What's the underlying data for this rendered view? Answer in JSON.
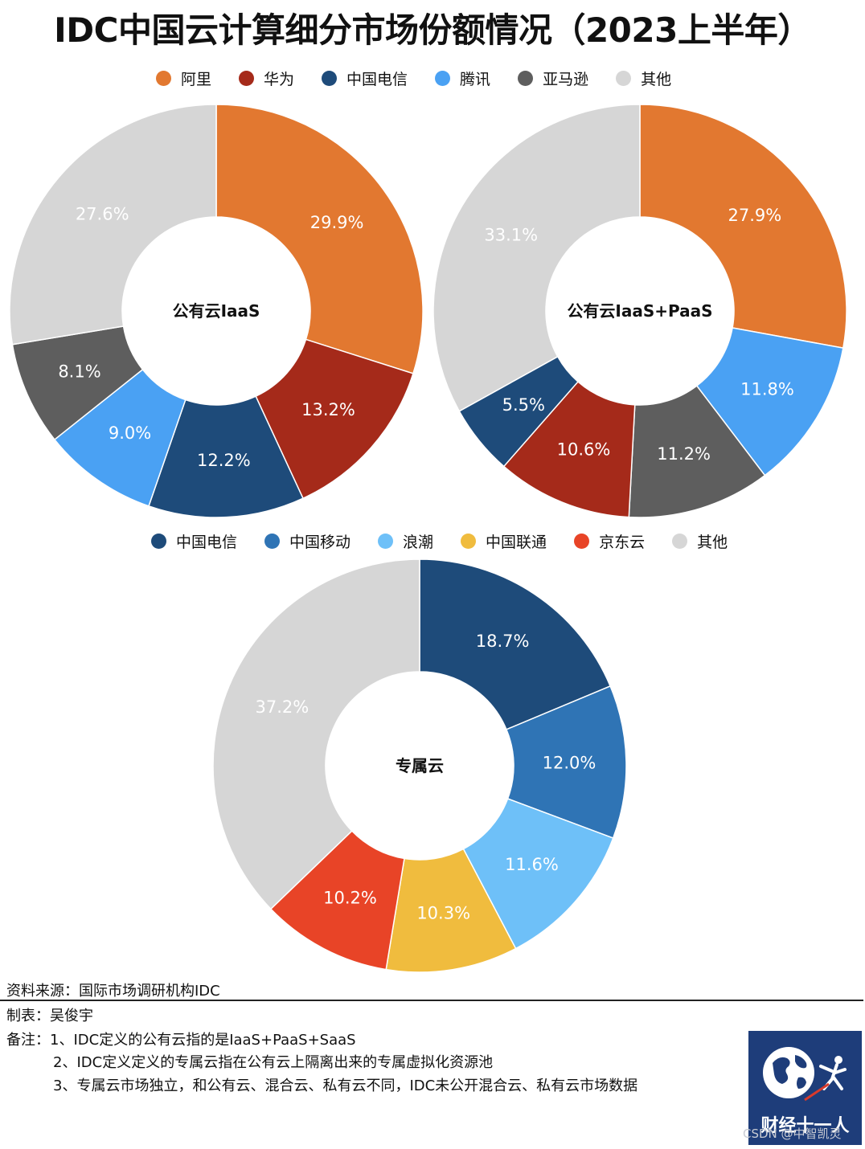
{
  "title": "IDC中国云计算细分市场份额情况（2023上半年）",
  "legend_top": [
    {
      "name": "阿里",
      "color": "#E27830"
    },
    {
      "name": "华为",
      "color": "#A52A1A"
    },
    {
      "name": "中国电信",
      "color": "#1E4B7A"
    },
    {
      "name": "腾讯",
      "color": "#4AA1F3"
    },
    {
      "name": "亚马逊",
      "color": "#5E5E5E"
    },
    {
      "name": "其他",
      "color": "#D6D6D6"
    }
  ],
  "legend_bottom": [
    {
      "name": "中国电信",
      "color": "#1E4B7A"
    },
    {
      "name": "中国移动",
      "color": "#2F74B5"
    },
    {
      "name": "浪潮",
      "color": "#6EC0F8"
    },
    {
      "name": "中国联通",
      "color": "#F0BC3E"
    },
    {
      "name": "京东云",
      "color": "#E84427"
    },
    {
      "name": "其他",
      "color": "#D6D6D6"
    }
  ],
  "chart_data": [
    {
      "type": "pie",
      "title": "公有云IaaS",
      "categories": [
        "阿里",
        "华为",
        "中国电信",
        "腾讯",
        "亚马逊",
        "其他"
      ],
      "values": [
        29.9,
        13.2,
        12.2,
        9.0,
        8.1,
        27.6
      ],
      "labels": [
        "29.9%",
        "13.2%",
        "12.2%",
        "9.0%",
        "8.1%",
        "27.6%"
      ],
      "colors": [
        "#E27830",
        "#A52A1A",
        "#1E4B7A",
        "#4AA1F3",
        "#5E5E5E",
        "#D6D6D6"
      ]
    },
    {
      "type": "pie",
      "title": "公有云IaaS+PaaS",
      "categories": [
        "阿里",
        "腾讯",
        "亚马逊",
        "华为",
        "中国电信",
        "其他"
      ],
      "values": [
        27.9,
        11.8,
        11.2,
        10.6,
        5.5,
        33.1
      ],
      "labels": [
        "27.9%",
        "11.8%",
        "11.2%",
        "10.6%",
        "5.5%",
        "33.1%"
      ],
      "colors": [
        "#E27830",
        "#4AA1F3",
        "#5E5E5E",
        "#A52A1A",
        "#1E4B7A",
        "#D6D6D6"
      ]
    },
    {
      "type": "pie",
      "title": "专属云",
      "categories": [
        "中国电信",
        "中国移动",
        "浪潮",
        "中国联通",
        "京东云",
        "其他"
      ],
      "values": [
        18.7,
        12.0,
        11.6,
        10.3,
        10.2,
        37.2
      ],
      "labels": [
        "18.7%",
        "12.0%",
        "11.6%",
        "10.3%",
        "10.2%",
        "37.2%"
      ],
      "colors": [
        "#1E4B7A",
        "#2F74B5",
        "#6EC0F8",
        "#F0BC3E",
        "#E84427",
        "#D6D6D6"
      ]
    }
  ],
  "footer": {
    "source": "资料来源：国际市场调研机构IDC",
    "author": "制表：吴俊宇",
    "note1": "备注：1、IDC定义的公有云指的是IaaS+PaaS+SaaS",
    "note2": "2、IDC定义定义的专属云指在公有云上隔离出来的专属虚拟化资源池",
    "note3": "3、专属云市场独立，和公有云、混合云、私有云不同，IDC未公开混合云、私有云市场数据"
  },
  "logo_text": "财经十一人",
  "watermark": "CSDN @中智凯灵"
}
